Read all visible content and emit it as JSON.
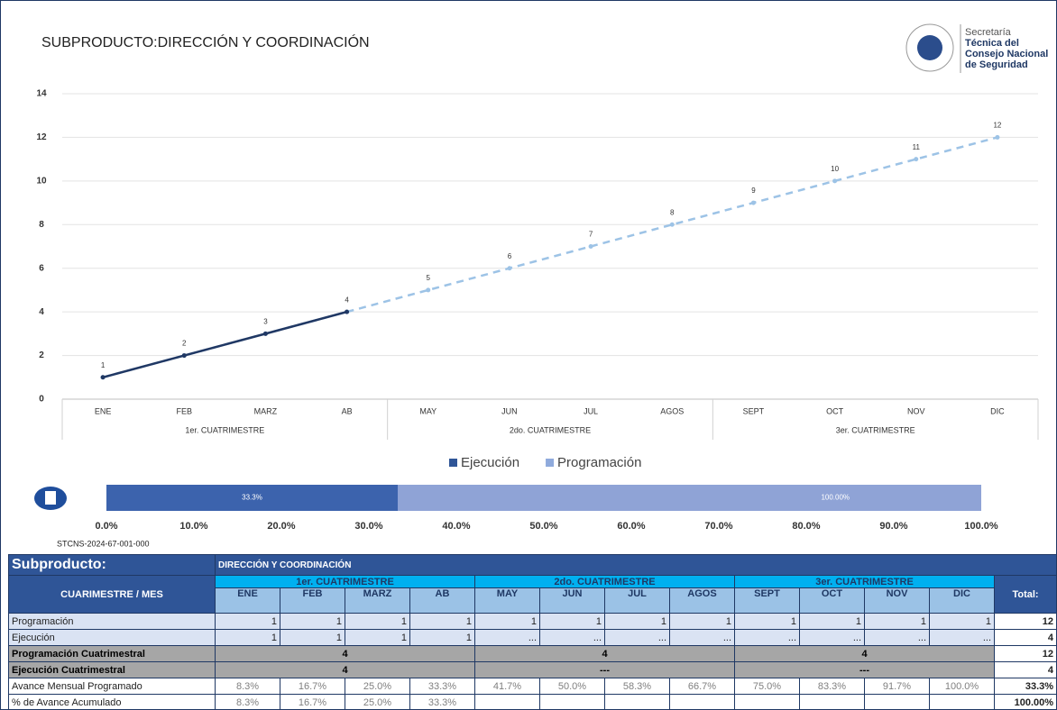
{
  "header": {
    "title": "SUBPRODUCTO:DIRECCIÓN Y COORDINACIÓN",
    "logo_lines": [
      "Secretaría",
      "Técnica del",
      "Consejo Nacional",
      "de Seguridad"
    ]
  },
  "chart_data": [
    {
      "type": "line",
      "categories": [
        "ENE",
        "FEB",
        "MARZ",
        "AB",
        "MAY",
        "JUN",
        "JUL",
        "AGOS",
        "SEPT",
        "OCT",
        "NOV",
        "DIC"
      ],
      "groups": [
        "1er. CUATRIMESTRE",
        "2do. CUATRIMESTRE",
        "3er. CUATRIMESTRE"
      ],
      "series": [
        {
          "name": "Programación",
          "color": "#9dc3e6",
          "dashed": true,
          "values": [
            1,
            2,
            3,
            4,
            5,
            6,
            7,
            8,
            9,
            10,
            11,
            12
          ]
        },
        {
          "name": "Ejecución",
          "color": "#203864",
          "dashed": false,
          "values": [
            1,
            2,
            3,
            4,
            null,
            null,
            null,
            null,
            null,
            null,
            null,
            null
          ]
        }
      ],
      "ylim": [
        0,
        14
      ],
      "yticks": [
        0,
        2,
        4,
        6,
        8,
        10,
        12,
        14
      ],
      "grid": true,
      "legend": "bottom"
    },
    {
      "type": "hbar",
      "values": [
        100,
        33.3
      ],
      "value_labels": [
        "100.00%",
        "33.3%"
      ],
      "colors": [
        "#8fa3d6",
        "#3c63ad"
      ],
      "xlim": [
        0,
        100
      ],
      "xticks": [
        {
          "value": 0,
          "label": "0.0%"
        },
        {
          "value": 10,
          "label": "10.0%"
        },
        {
          "value": 20,
          "label": "20.0%"
        },
        {
          "value": 30,
          "label": "30.0%"
        },
        {
          "value": 40,
          "label": "40.0%"
        },
        {
          "value": 50,
          "label": "50.0%"
        },
        {
          "value": 60,
          "label": "60.0%"
        },
        {
          "value": 70,
          "label": "70.0%"
        },
        {
          "value": 80,
          "label": "80.0%"
        },
        {
          "value": 90,
          "label": "90.0%"
        },
        {
          "value": 100,
          "label": "100.0%"
        }
      ]
    }
  ],
  "code": "STCNS-2024-67-001-000",
  "table": {
    "title": "Subproducto:",
    "subtitle": "DIRECCIÓN Y COORDINACIÓN",
    "corner": "CUARIMESTRE / MES",
    "total_header": "Total:",
    "rows": [
      {
        "label": "Programación",
        "cells": [
          1,
          1,
          1,
          1,
          1,
          1,
          1,
          1,
          1,
          1,
          1,
          1
        ],
        "total": 12
      },
      {
        "label": "Ejecución",
        "cells": [
          1,
          1,
          1,
          1,
          "...",
          "...",
          "...",
          "...",
          "...",
          "...",
          "...",
          "..."
        ],
        "total": 4
      },
      {
        "label": "Programación Cuatrimestral",
        "cells": [
          4,
          4,
          4
        ],
        "total": 12
      },
      {
        "label": "Ejecución Cuatrimestral",
        "cells": [
          4,
          "---",
          "---"
        ],
        "total": 4
      },
      {
        "label": "Avance Mensual Programado",
        "cells": [
          "8.3%",
          "16.7%",
          "25.0%",
          "33.3%",
          "41.7%",
          "50.0%",
          "58.3%",
          "66.7%",
          "75.0%",
          "83.3%",
          "91.7%",
          "100.0%"
        ],
        "total": "33.3%"
      },
      {
        "label": "% de Avance Acumulado",
        "cells": [
          "8.3%",
          "16.7%",
          "25.0%",
          "33.3%"
        ],
        "total": "100.00%"
      }
    ]
  }
}
